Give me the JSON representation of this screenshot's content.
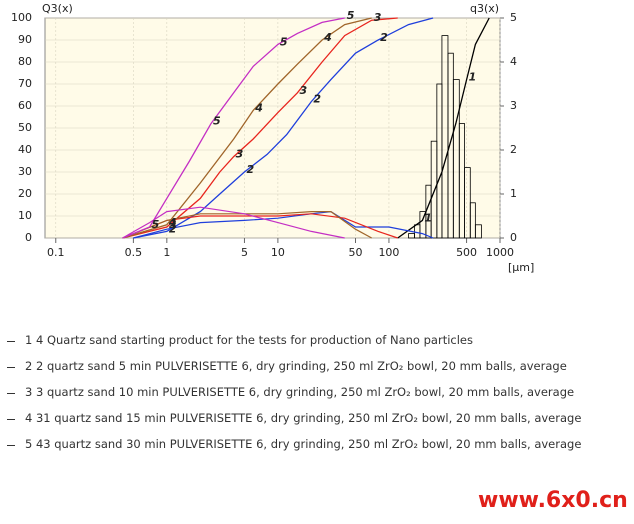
{
  "chart_data": {
    "type": "line",
    "y_label": "Q3(x)",
    "y2_label": "q3(x)",
    "x_label": "[µm]",
    "xscale": "log",
    "xlim": [
      0.08,
      1000
    ],
    "xticks": [
      0.1,
      0.5,
      1,
      5,
      10,
      50,
      100,
      500,
      1000
    ],
    "ylim": [
      0,
      100
    ],
    "yticks": [
      0,
      10,
      20,
      30,
      40,
      50,
      60,
      70,
      80,
      90,
      100
    ],
    "y2lim": [
      0,
      5
    ],
    "y2ticks": [
      0,
      1,
      2,
      3,
      4,
      5
    ],
    "grid": true,
    "series": [
      {
        "name": "1 4 Quartz sand starting product for the tests for production of Nano particles",
        "marker": "1",
        "color": "#000000",
        "x": [
          120,
          200,
          300,
          400,
          500,
          600,
          800
        ],
        "values": [
          0,
          8,
          30,
          52,
          72,
          88,
          100
        ],
        "histogram": {
          "bins": [
            150,
            170,
            190,
            215,
            240,
            270,
            300,
            340,
            380,
            430,
            480,
            540,
            600,
            680
          ],
          "values": [
            0.1,
            0.3,
            0.6,
            1.2,
            2.2,
            3.5,
            4.6,
            4.2,
            3.6,
            2.6,
            1.6,
            0.8,
            0.3
          ]
        }
      },
      {
        "name": "2 2 quartz sand 5 min PULVERISETTE 6, dry grinding, 250 ml ZrO₂ bowl, 20 mm balls, average",
        "marker": "2",
        "color": "#1f3fdc",
        "x": [
          0.5,
          1,
          2,
          3,
          5,
          8,
          12,
          20,
          30,
          50,
          80,
          150,
          250
        ],
        "values": [
          0,
          3,
          12,
          20,
          30,
          38,
          47,
          62,
          72,
          84,
          90,
          97,
          100
        ],
        "density": {
          "x": [
            0.5,
            1,
            2,
            5,
            10,
            20,
            30,
            50,
            100,
            200,
            250
          ],
          "values": [
            0,
            0.2,
            0.35,
            0.4,
            0.45,
            0.55,
            0.6,
            0.25,
            0.25,
            0.1,
            0
          ]
        }
      },
      {
        "name": "3 3 quartz sand 10 min PULVERISETTE 6, dry grinding, 250 ml ZrO₂ bowl, 20 mm balls, average",
        "marker": "3",
        "color": "#e8251e",
        "x": [
          0.4,
          1,
          2,
          3,
          4,
          6,
          10,
          15,
          25,
          40,
          70,
          120
        ],
        "values": [
          0,
          5,
          18,
          30,
          37,
          45,
          57,
          66,
          80,
          92,
          99,
          100
        ],
        "density": {
          "x": [
            0.4,
            1,
            2,
            5,
            10,
            20,
            40,
            80,
            120
          ],
          "values": [
            0,
            0.4,
            0.5,
            0.5,
            0.5,
            0.55,
            0.45,
            0.15,
            0
          ]
        }
      },
      {
        "name": "4 31 quartz sand 15 min PULVERISETTE 6, dry grinding, 250 ml ZrO₂ bowl, 20 mm balls, average",
        "marker": "4",
        "color": "#a0652a",
        "x": [
          0.4,
          1,
          2,
          4,
          6,
          10,
          15,
          25,
          40,
          70
        ],
        "values": [
          0,
          6,
          25,
          45,
          58,
          70,
          79,
          90,
          97,
          100
        ],
        "density": {
          "x": [
            0.4,
            1,
            2,
            5,
            10,
            20,
            30,
            50,
            70
          ],
          "values": [
            0,
            0.4,
            0.55,
            0.55,
            0.55,
            0.6,
            0.6,
            0.2,
            0
          ]
        }
      },
      {
        "name": "5 43 quartz sand 30 min PULVERISETTE 6, dry grinding, 250 ml ZrO₂ bowl, 20 mm balls, average",
        "marker": "5",
        "color": "#c42fc4",
        "x": [
          0.4,
          0.7,
          1,
          1.6,
          2.5,
          4,
          6,
          10,
          15,
          25,
          40
        ],
        "values": [
          0,
          5,
          18,
          35,
          52,
          66,
          78,
          88,
          93,
          98,
          100
        ],
        "density": {
          "x": [
            0.4,
            0.7,
            1,
            2,
            5,
            10,
            20,
            40
          ],
          "values": [
            0,
            0.35,
            0.6,
            0.7,
            0.55,
            0.35,
            0.15,
            0
          ]
        }
      }
    ],
    "watermark": "www.6x0.cn"
  }
}
